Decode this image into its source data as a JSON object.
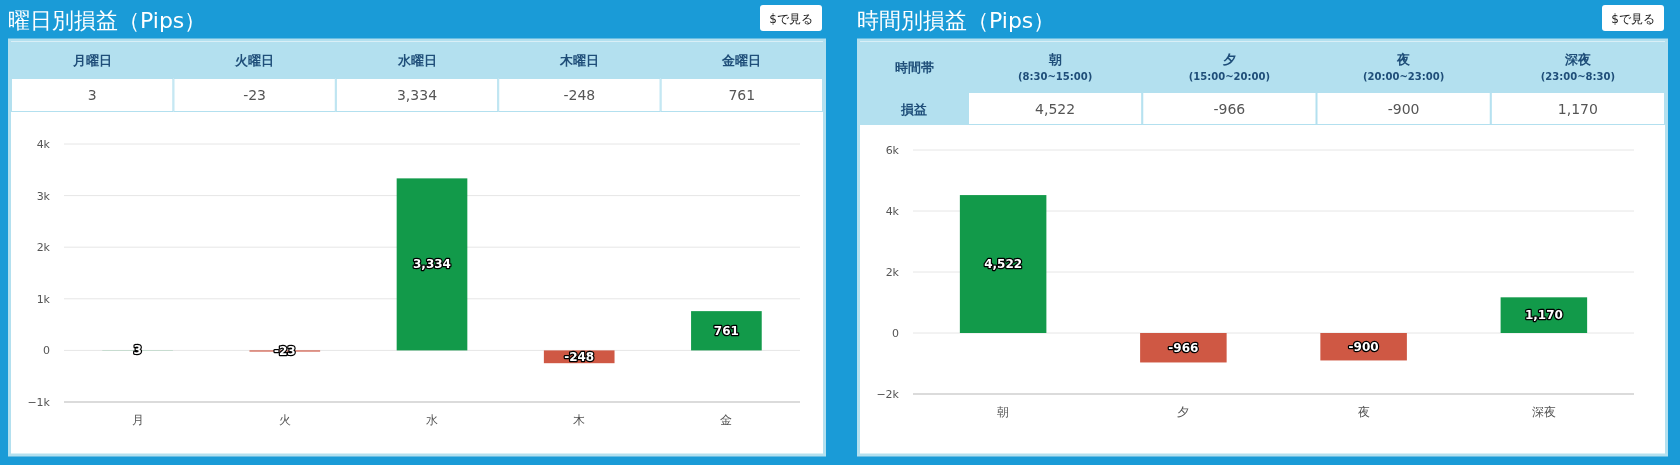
{
  "chart_data": [
    {
      "type": "bar",
      "title": "曜日別損益（Pips）",
      "categories": [
        "月",
        "火",
        "水",
        "木",
        "金"
      ],
      "values": [
        3,
        -23,
        3334,
        -248,
        761
      ],
      "colors": [
        "#129a4a",
        "#cf5844",
        "#129a4a",
        "#cf5844",
        "#129a4a"
      ],
      "value_labels": [
        "3",
        "-23",
        "3,334",
        "-248",
        "761"
      ],
      "ylim": [
        -1000,
        4000
      ],
      "yticks": [
        {
          "value": -1000,
          "label": "−1k"
        },
        0,
        {
          "value": 1000,
          "label": "1k"
        },
        {
          "value": 2000,
          "label": "2k"
        },
        {
          "value": 3000,
          "label": "3k"
        },
        {
          "value": 4000,
          "label": "4k"
        }
      ],
      "grid": "y",
      "annotations": [
        "月曜日",
        "火曜日",
        "水曜日",
        "木曜日",
        "金曜日",
        "$で見る"
      ]
    },
    {
      "type": "bar",
      "title": "時間別損益（Pips）",
      "categories": [
        "朝",
        "夕",
        "夜",
        "深夜"
      ],
      "values": [
        4522,
        -966,
        -900,
        1170
      ],
      "colors": [
        "#129a4a",
        "#cf5844",
        "#cf5844",
        "#129a4a"
      ],
      "value_labels": [
        "4,522",
        "-966",
        "-900",
        "1,170"
      ],
      "ylim": [
        -2000,
        6000
      ],
      "yticks": [
        {
          "value": -2000,
          "label": "−2k"
        },
        0,
        {
          "value": 2000,
          "label": "2k"
        },
        {
          "value": 4000,
          "label": "4k"
        },
        {
          "value": 6000,
          "label": "6k"
        }
      ],
      "grid": "y",
      "annotations": [
        "時間帯",
        "損益",
        "朝",
        "(8:30~15:00)",
        "夕",
        "(15:00~20:00)",
        "夜",
        "(20:00~23:00)",
        "深夜",
        "(23:00~8:30)",
        "$で見る"
      ]
    }
  ]
}
